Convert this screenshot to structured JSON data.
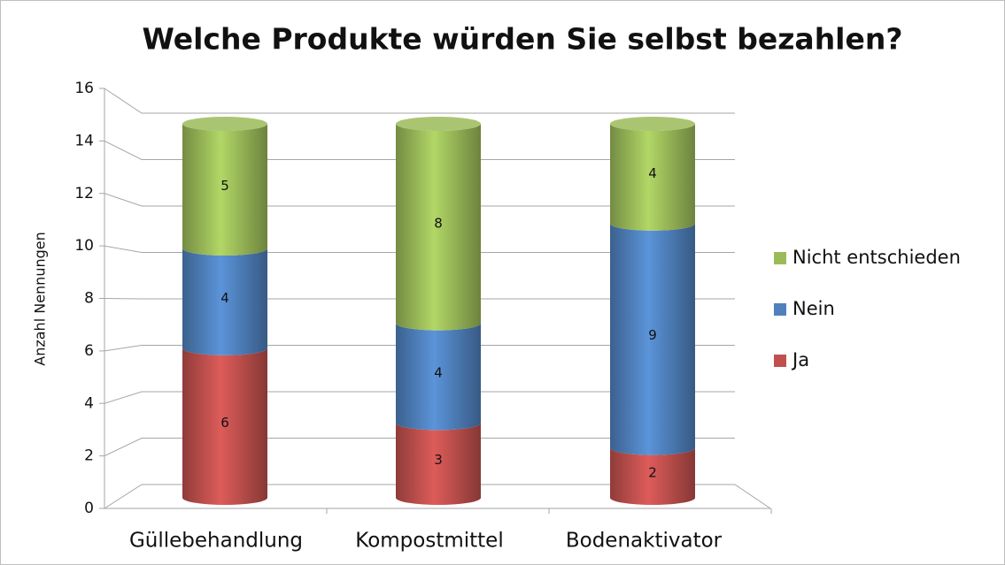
{
  "chart_data": {
    "type": "bar3d_stacked",
    "title": "Welche Produkte würden Sie selbst bezahlen?",
    "ylabel": "Anzahl Nennungen",
    "categories": [
      "Güllebehandlung",
      "Kompostmittel",
      "Bodenaktivator"
    ],
    "series": [
      {
        "name": "Ja",
        "color": "#c0504d",
        "values": [
          6,
          3,
          2
        ]
      },
      {
        "name": "Nein",
        "color": "#4f81bd",
        "values": [
          4,
          4,
          9
        ]
      },
      {
        "name": "Nicht entschieden",
        "color": "#9bbb59",
        "values": [
          5,
          8,
          4
        ]
      }
    ],
    "ylim": [
      0,
      16
    ],
    "yticks": [
      0,
      2,
      4,
      6,
      8,
      10,
      12,
      14,
      16
    ],
    "grid": true,
    "legend": "right"
  }
}
